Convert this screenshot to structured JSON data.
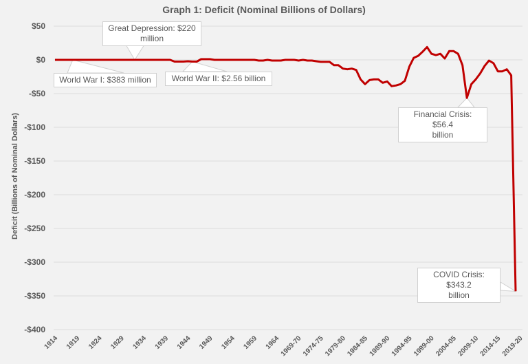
{
  "chart_data": {
    "type": "line",
    "title": "Graph 1: Deficit (Nominal Billions of Dollars)",
    "xlabel": "",
    "ylabel": "Deficit (Billions of Nominal Dollars)",
    "ylim": [
      -400,
      50
    ],
    "yticks": [
      50,
      0,
      -50,
      -100,
      -150,
      -200,
      -250,
      -300,
      -350,
      -400
    ],
    "ytick_labels": [
      "$50",
      "$0",
      "-$50",
      "-$100",
      "-$150",
      "-$200",
      "-$250",
      "-$300",
      "-$350",
      "-$400"
    ],
    "grid": true,
    "legend": "none",
    "color": "#c00000",
    "xtick_labels": [
      "1914",
      "1919",
      "1924",
      "1929",
      "1934",
      "1939",
      "1944",
      "1949",
      "1954",
      "1959",
      "1964",
      "1969-70",
      "1974-75",
      "1979-80",
      "1984-85",
      "1989-90",
      "1994-95",
      "1999-00",
      "2004-05",
      "2009-10",
      "2014-15",
      "2019-20"
    ],
    "series": [
      {
        "name": "Deficit",
        "values": [
          0,
          0,
          0,
          0,
          0,
          0,
          0,
          0,
          0,
          0,
          0,
          0,
          0,
          0,
          0,
          0,
          0,
          0,
          0,
          0,
          0,
          0,
          0,
          0,
          0,
          0,
          0,
          -2.5,
          -2.5,
          -2.5,
          -2,
          -2.56,
          -2.5,
          1,
          1,
          1,
          0,
          0,
          0,
          0,
          0,
          0,
          0,
          0,
          0,
          0,
          -1,
          -1,
          0,
          -1,
          -1,
          -1,
          0,
          0,
          0,
          -1,
          0,
          -1,
          -1,
          -2,
          -3,
          -3,
          -3,
          -8,
          -8,
          -13,
          -14,
          -13,
          -15,
          -29,
          -36,
          -30,
          -29,
          -29,
          -34,
          -32,
          -39,
          -38,
          -36,
          -31,
          -10,
          3,
          6,
          12,
          19,
          9,
          7,
          9,
          2,
          13,
          13,
          9,
          -8,
          -56.4,
          -36,
          -29,
          -20,
          -9,
          -1,
          -5,
          -17,
          -17,
          -14,
          -23,
          -343.2
        ]
      }
    ],
    "annotations": [
      {
        "text_line1": "Great Depression: $220",
        "text_line2": "million",
        "index": 18
      },
      {
        "text_line1": "World War I: $383 million",
        "text_line2": "",
        "index": 4
      },
      {
        "text_line1": "World War II: $2.56 billion",
        "text_line2": "",
        "index": 31
      },
      {
        "text_line1": "Financial Crisis: $56.4",
        "text_line2": "billion",
        "index": 93
      },
      {
        "text_line1": "COVID Crisis: $343.2",
        "text_line2": "billion",
        "index": 104
      }
    ]
  }
}
